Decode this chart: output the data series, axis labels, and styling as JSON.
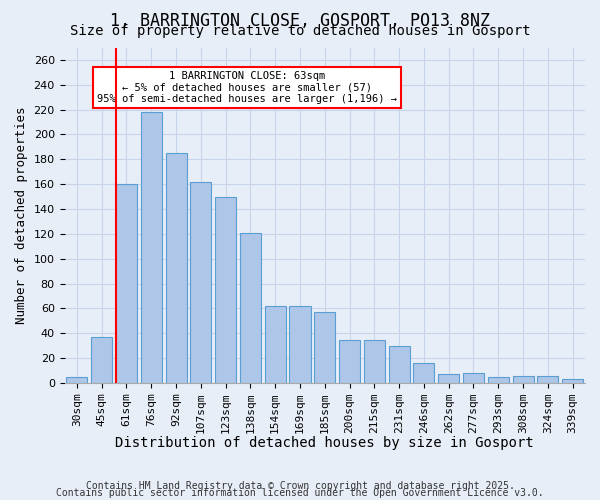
{
  "title": "1, BARRINGTON CLOSE, GOSPORT, PO13 8NZ",
  "subtitle": "Size of property relative to detached houses in Gosport",
  "xlabel": "Distribution of detached houses by size in Gosport",
  "ylabel": "Number of detached properties",
  "categories": [
    "30sqm",
    "45sqm",
    "61sqm",
    "76sqm",
    "92sqm",
    "107sqm",
    "123sqm",
    "138sqm",
    "154sqm",
    "169sqm",
    "185sqm",
    "200sqm",
    "215sqm",
    "231sqm",
    "246sqm",
    "262sqm",
    "277sqm",
    "293sqm",
    "308sqm",
    "324sqm",
    "339sqm"
  ],
  "values": [
    5,
    37,
    160,
    218,
    185,
    162,
    150,
    121,
    62,
    62,
    57,
    35,
    35,
    30,
    16,
    7,
    8,
    5,
    6,
    6,
    3
  ],
  "bar_color": "#aec6e8",
  "bar_edge_color": "#5a9fd4",
  "redline_x": 2,
  "annotation_text": "1 BARRINGTON CLOSE: 63sqm\n← 5% of detached houses are smaller (57)\n95% of semi-detached houses are larger (1,196) →",
  "annotation_box_color": "white",
  "annotation_box_edge": "red",
  "redline_color": "red",
  "ylim": [
    0,
    270
  ],
  "yticks": [
    0,
    20,
    40,
    60,
    80,
    100,
    120,
    140,
    160,
    180,
    200,
    220,
    240,
    260
  ],
  "footer1": "Contains HM Land Registry data © Crown copyright and database right 2025.",
  "footer2": "Contains public sector information licensed under the Open Government Licence v3.0.",
  "bg_color": "#e8eef8",
  "grid_color": "#c8d4e8",
  "title_fontsize": 12,
  "subtitle_fontsize": 10,
  "xlabel_fontsize": 10,
  "ylabel_fontsize": 9,
  "tick_fontsize": 8,
  "footer_fontsize": 7
}
